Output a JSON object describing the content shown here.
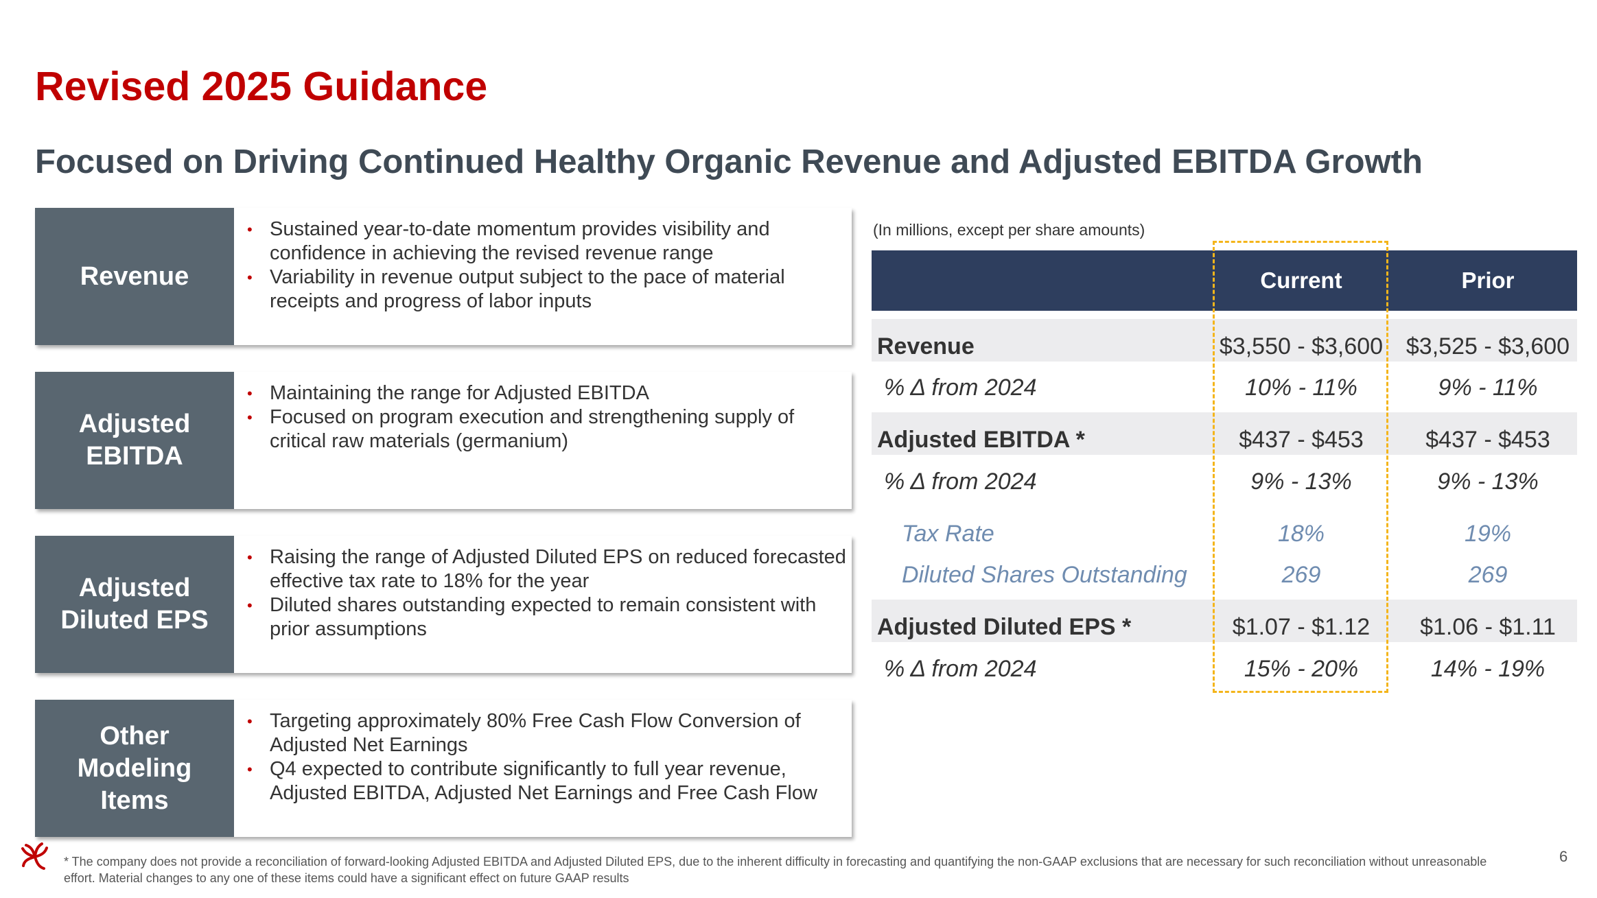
{
  "slide": {
    "title": "Revised 2025 Guidance",
    "subtitle": "Focused on Driving Continued Healthy Organic Revenue and Adjusted EBITDA Growth",
    "page_number": "6"
  },
  "cards": [
    {
      "label_lines": [
        "Revenue"
      ],
      "bullets": [
        "Sustained year-to-date momentum provides visibility and confidence in achieving the revised revenue range",
        "Variability in revenue output subject to the pace of material receipts and progress of labor inputs"
      ]
    },
    {
      "label_lines": [
        "Adjusted",
        "EBITDA"
      ],
      "bullets": [
        "Maintaining the range for Adjusted EBITDA",
        "Focused on program execution and strengthening supply of critical raw materials (germanium)"
      ]
    },
    {
      "label_lines": [
        "Adjusted",
        "Diluted EPS"
      ],
      "bullets": [
        "Raising the range of Adjusted Diluted EPS on reduced forecasted effective tax rate to 18% for the year",
        "Diluted shares outstanding expected to remain consistent with prior assumptions"
      ]
    },
    {
      "label_lines": [
        "Other",
        "Modeling",
        "Items"
      ],
      "bullets": [
        "Targeting approximately 80% Free Cash Flow Conversion of Adjusted Net Earnings",
        "Q4 expected to contribute significantly to full year revenue, Adjusted EBITDA, Adjusted Net Earnings and Free Cash Flow"
      ]
    }
  ],
  "table": {
    "units_note": "(In millions, except per share amounts)",
    "headers": [
      "",
      "Current",
      "Prior"
    ],
    "rows": [
      {
        "label": "Revenue",
        "current": "$3,550 - $3,600",
        "prior": "$3,525 - $3,600"
      },
      {
        "label": "% Δ from 2024",
        "current": "10% - 11%",
        "prior": "9% - 11%"
      },
      {
        "label": "Adjusted EBITDA *",
        "current": "$437 - $453",
        "prior": "$437 - $453"
      },
      {
        "label": "% Δ from 2024",
        "current": "9% - 13%",
        "prior": "9% - 13%"
      },
      {
        "label": "Tax Rate",
        "current": "18%",
        "prior": "19%"
      },
      {
        "label": "Diluted Shares Outstanding",
        "current": "269",
        "prior": "269"
      },
      {
        "label": "Adjusted Diluted EPS *",
        "current": "$1.07 - $1.12",
        "prior": "$1.06 - $1.11"
      },
      {
        "label": "% Δ from 2024",
        "current": "15% - 20%",
        "prior": "14% - 19%"
      }
    ]
  },
  "footnote": "* The company does not provide a reconciliation of forward-looking Adjusted EBITDA and Adjusted Diluted EPS, due to the inherent difficulty in forecasting and quantifying the non-GAAP exclusions that are necessary for such reconciliation without unreasonable effort. Material changes to any one of these items could have a significant effect on future GAAP results",
  "colors": {
    "title": "#c00000",
    "subtitle": "#3f4a55",
    "card_label_bg": "#596670",
    "table_header_bg": "#2e3e5e",
    "row_shade": "#ececee",
    "sub_metric_text": "#6f8cb0",
    "highlight_border": "#f4b51b",
    "bullet": "#c00000"
  },
  "icons": {
    "logo": "starburst-logo-icon",
    "bullet": "bullet-dot-icon"
  }
}
